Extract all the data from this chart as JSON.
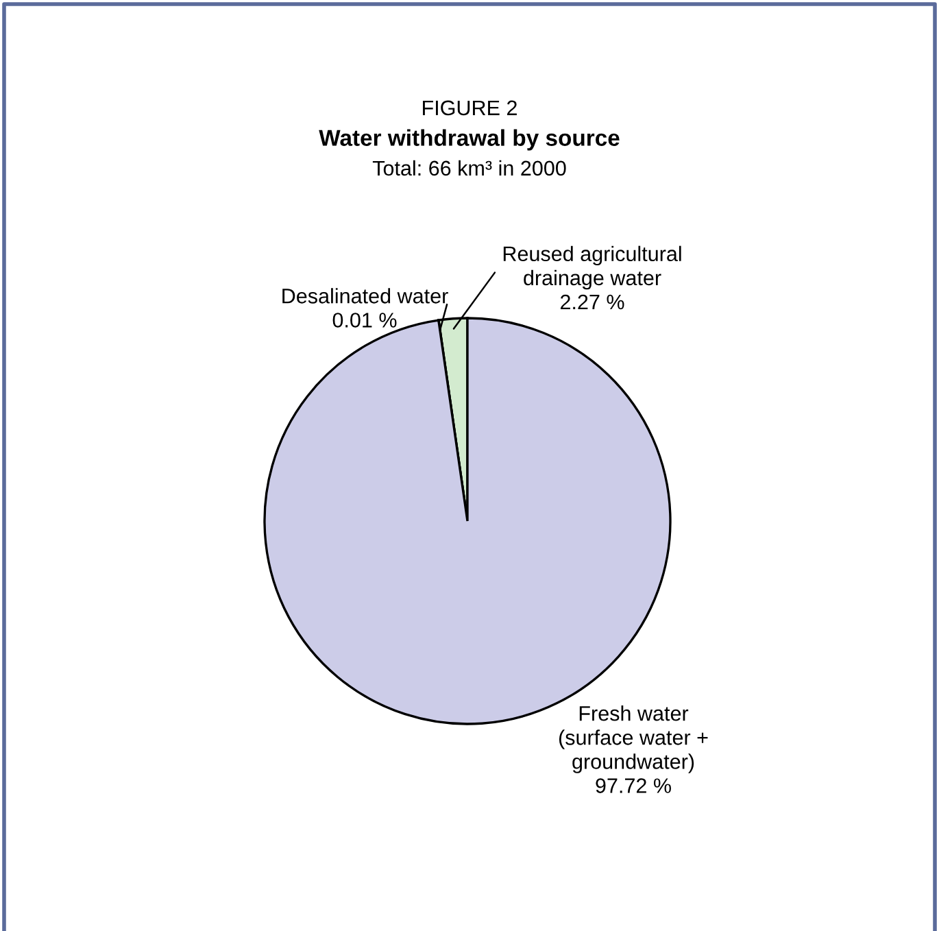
{
  "chart_data": {
    "type": "pie",
    "title": "Water withdrawal by source",
    "subtitle": "Total: 66 km³ in 2000",
    "annotations": [
      "FIGURE 2"
    ],
    "categories": [
      "Reused agricultural\ndrainage water",
      "Desalinated water",
      "Fresh water\n(surface water +\ngroundwater)"
    ],
    "values": [
      2.27,
      0.01,
      97.72
    ],
    "value_labels": [
      "2.27 %",
      "0.01 %",
      "97.72 %"
    ],
    "colors": [
      "#d3ebcf",
      "#cccce8",
      "#cccce8"
    ]
  }
}
